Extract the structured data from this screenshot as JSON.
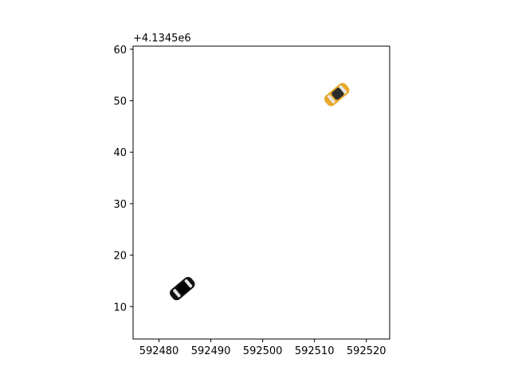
{
  "chart_data": {
    "type": "scatter",
    "title": "",
    "xlabel": "",
    "ylabel": "",
    "y_offset_label": "+4.1345e6",
    "xlim": [
      592475,
      592524.5
    ],
    "ylim": [
      3.7,
      60.6
    ],
    "x_ticks": [
      592480,
      592490,
      592500,
      592510,
      592520
    ],
    "y_ticks": [
      10,
      20,
      30,
      40,
      50,
      60
    ],
    "grid": false,
    "series": [
      {
        "marker": "car",
        "color": "#111111",
        "points": [
          {
            "x": 592484.5,
            "y": 13.5,
            "heading_deg": 40
          }
        ]
      },
      {
        "marker": "car",
        "color": "#e8a92a",
        "points": [
          {
            "x": 592514.3,
            "y": 51.2,
            "heading_deg": 40
          }
        ]
      }
    ]
  }
}
